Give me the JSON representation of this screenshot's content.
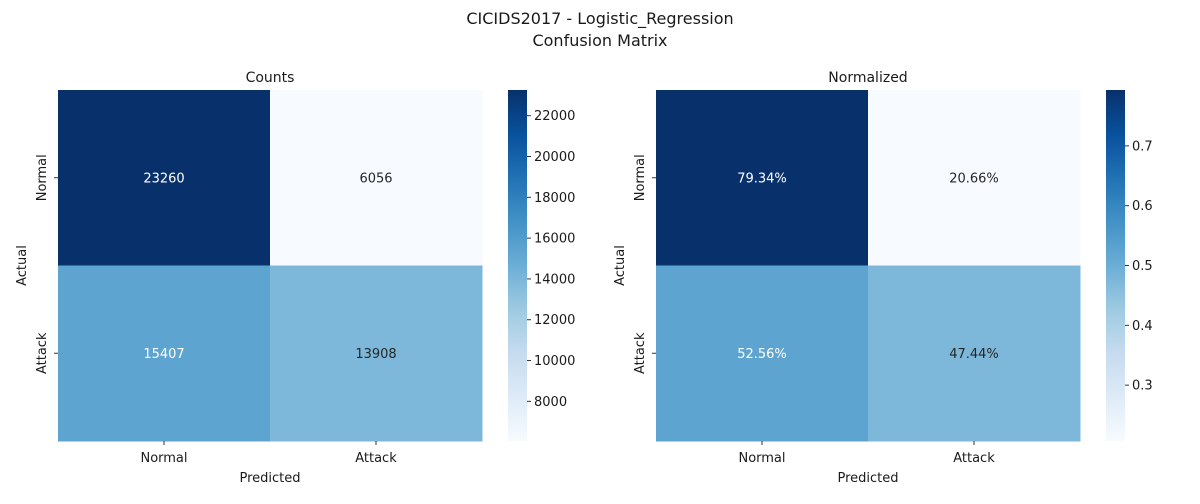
{
  "figure": {
    "title_line1": "CICIDS2017 - Logistic_Regression",
    "title_line2": "Confusion Matrix"
  },
  "chart_data": [
    {
      "type": "heatmap",
      "title": "Counts",
      "xlabel": "Predicted",
      "ylabel": "Actual",
      "x_categories": [
        "Normal",
        "Attack"
      ],
      "y_categories": [
        "Normal",
        "Attack"
      ],
      "values": [
        [
          23260,
          6056
        ],
        [
          15407,
          13908
        ]
      ],
      "cell_labels": [
        [
          "23260",
          "6056"
        ],
        [
          "15407",
          "13908"
        ]
      ],
      "colormap": "Blues",
      "vmin": 6056,
      "vmax": 23260,
      "colorbar_ticks": [
        8000,
        10000,
        12000,
        14000,
        16000,
        18000,
        20000,
        22000
      ],
      "colorbar_tick_labels": [
        "8000",
        "10000",
        "12000",
        "14000",
        "16000",
        "18000",
        "20000",
        "22000"
      ]
    },
    {
      "type": "heatmap",
      "title": "Normalized",
      "xlabel": "Predicted",
      "ylabel": "Actual",
      "x_categories": [
        "Normal",
        "Attack"
      ],
      "y_categories": [
        "Normal",
        "Attack"
      ],
      "values": [
        [
          0.7934,
          0.2066
        ],
        [
          0.5256,
          0.4744
        ]
      ],
      "cell_labels": [
        [
          "79.34%",
          "20.66%"
        ],
        [
          "52.56%",
          "47.44%"
        ]
      ],
      "colormap": "Blues",
      "vmin": 0.2066,
      "vmax": 0.7934,
      "colorbar_ticks": [
        0.3,
        0.4,
        0.5,
        0.6,
        0.7
      ],
      "colorbar_tick_labels": [
        "0.3",
        "0.4",
        "0.5",
        "0.6",
        "0.7"
      ]
    }
  ]
}
